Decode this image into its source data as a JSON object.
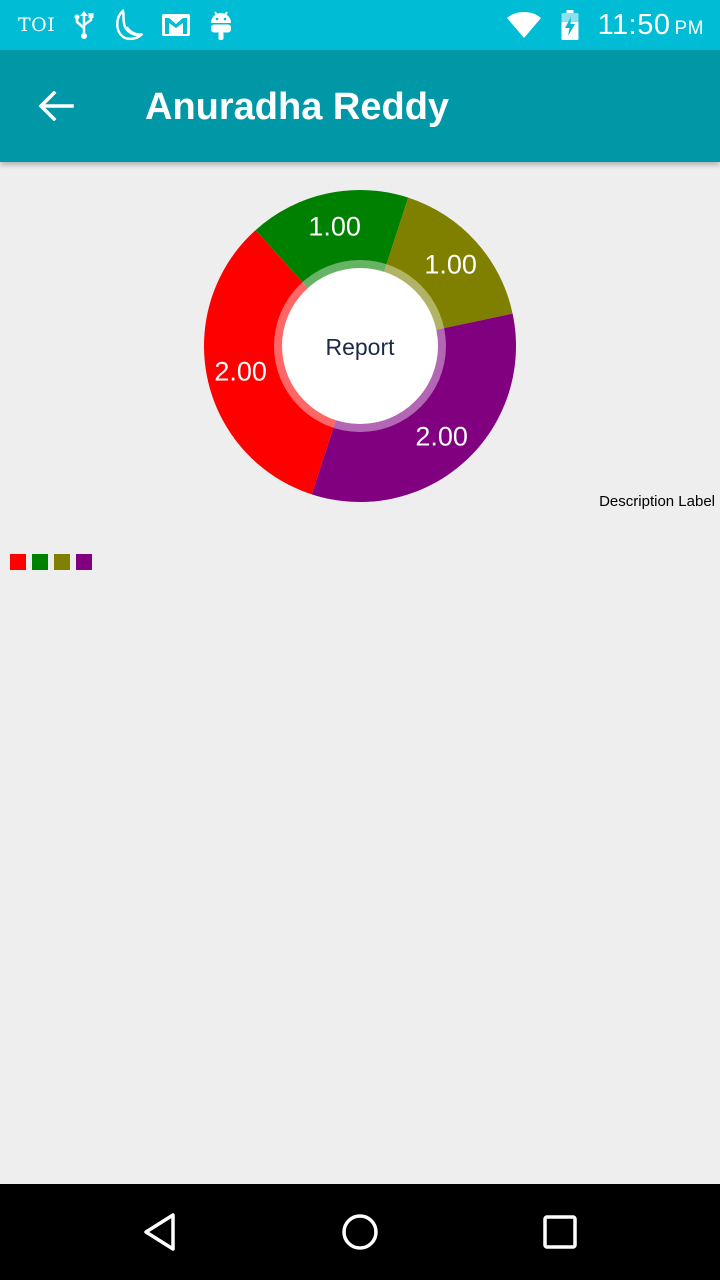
{
  "status_bar": {
    "left_text": "TOI",
    "icons_left": [
      "usb-icon",
      "moon-icon",
      "gmail-icon",
      "android-icon"
    ],
    "icons_right": [
      "wifi-icon",
      "battery-charging-icon"
    ],
    "time": "11:50",
    "ampm": "PM"
  },
  "app_bar": {
    "title": "Anuradha Reddy",
    "back_icon": "arrow-left-icon"
  },
  "chart_data": {
    "type": "pie",
    "center_text": "Report",
    "description": "Description Label",
    "slices": [
      {
        "label": "2.00",
        "value": 2.0,
        "color": "#ff0000"
      },
      {
        "label": "1.00",
        "value": 1.0,
        "color": "#008000"
      },
      {
        "label": "1.00",
        "value": 1.0,
        "color": "#808000"
      },
      {
        "label": "2.00",
        "value": 2.0,
        "color": "#800080"
      }
    ],
    "legend_placement": "bottom-left",
    "legend_colors": [
      "#ff0000",
      "#008000",
      "#808000",
      "#800080"
    ]
  },
  "nav_bar": {
    "icons": [
      "back-triangle-icon",
      "home-circle-icon",
      "recents-square-icon"
    ]
  },
  "colors": {
    "status_bar": "#00bcd4",
    "app_bar": "#0097a7",
    "background": "#eeeeee",
    "nav_bar": "#000000"
  }
}
